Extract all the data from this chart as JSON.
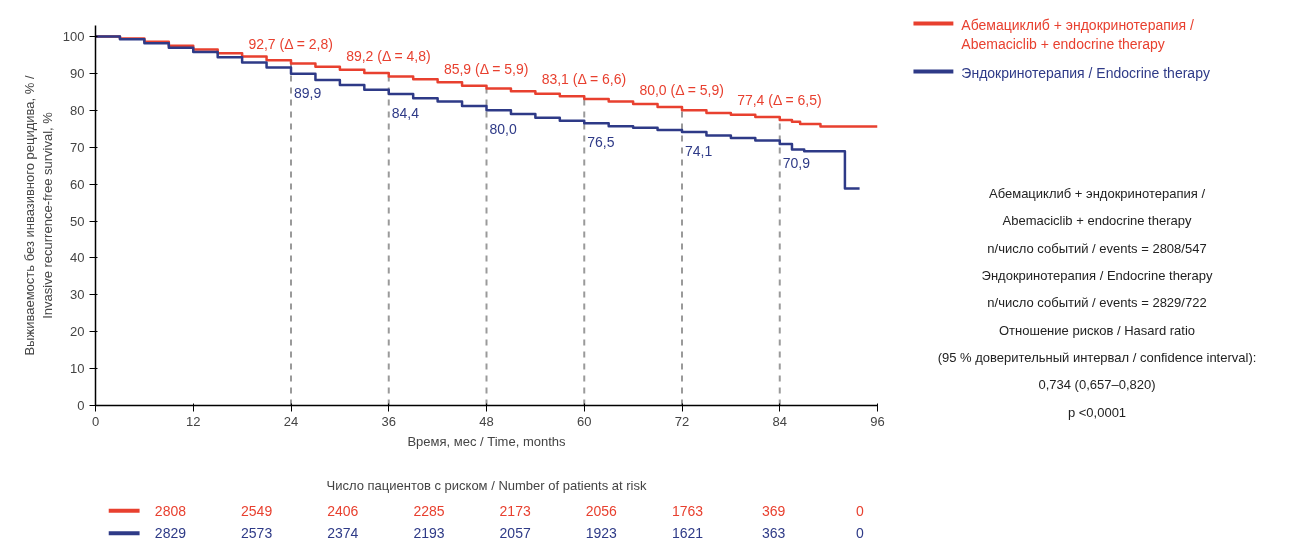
{
  "chart_data": [
    {
      "type": "step",
      "xlabel": "Время, мес / Time, months",
      "ylabel": "Выживаемость без инвазивного рецидива, % / Invasive recurrence-free survival, %",
      "xlim": [
        0,
        96
      ],
      "ylim": [
        0,
        103
      ],
      "xticks": [
        0,
        12,
        24,
        36,
        48,
        60,
        72,
        84,
        96
      ],
      "yticks": [
        0,
        10,
        20,
        30,
        40,
        50,
        60,
        70,
        80,
        90,
        100
      ],
      "grid": false,
      "legend": "top right",
      "marker": "none",
      "line_style": "solid",
      "series": [
        {
          "name": "Абемациклиб + эндокринотерапия / Abemaciclib + endocrine therapy",
          "color": "#e8402f",
          "x": [
            0,
            3,
            6,
            9,
            12,
            15,
            18,
            21,
            24,
            27,
            30,
            33,
            36,
            39,
            42,
            45,
            48,
            51,
            54,
            57,
            60,
            63,
            66,
            69,
            72,
            75,
            78,
            81,
            84,
            85.5,
            86.5,
            88,
            89,
            92,
            96
          ],
          "values": [
            100,
            99.5,
            98.6,
            97.5,
            96.5,
            95.5,
            94.6,
            93.6,
            92.7,
            91.8,
            91.0,
            90.1,
            89.2,
            88.4,
            87.6,
            86.7,
            85.9,
            85.2,
            84.5,
            83.8,
            83.1,
            82.4,
            81.7,
            80.9,
            80.0,
            79.3,
            78.8,
            78.2,
            77.4,
            76.9,
            76.3,
            76.3,
            75.6,
            75.6,
            75.6
          ]
        },
        {
          "name": "Эндокринотерапия / Endocrine therapy",
          "color": "#2e3a87",
          "x": [
            0,
            3,
            6,
            9,
            12,
            15,
            18,
            21,
            24,
            27,
            30,
            33,
            36,
            39,
            42,
            45,
            48,
            51,
            54,
            57,
            60,
            63,
            66,
            69,
            72,
            75,
            78,
            81,
            84,
            85.5,
            87,
            90,
            92,
            92,
            93.8
          ],
          "values": [
            100,
            99.3,
            98.2,
            97.0,
            95.8,
            94.4,
            93.0,
            91.6,
            89.9,
            88.2,
            86.9,
            85.6,
            84.4,
            83.3,
            82.4,
            81.2,
            80.0,
            79.0,
            78.0,
            77.2,
            76.5,
            75.7,
            75.3,
            74.7,
            74.1,
            73.2,
            72.5,
            71.8,
            70.9,
            69.4,
            68.9,
            68.9,
            68.9,
            58.8,
            58.8
          ]
        }
      ],
      "ref_lines": [
        {
          "axis": "x",
          "value": 24,
          "line_style": "dashed",
          "color": "#9a9a9a"
        },
        {
          "axis": "x",
          "value": 36,
          "line_style": "dashed",
          "color": "#9a9a9a"
        },
        {
          "axis": "x",
          "value": 48,
          "line_style": "dashed",
          "color": "#9a9a9a"
        },
        {
          "axis": "x",
          "value": 60,
          "line_style": "dashed",
          "color": "#9a9a9a"
        },
        {
          "axis": "x",
          "value": 72,
          "line_style": "dashed",
          "color": "#9a9a9a"
        },
        {
          "axis": "x",
          "value": 84,
          "line_style": "dashed",
          "color": "#9a9a9a"
        }
      ],
      "annotations": [
        {
          "text": "92,7 (Δ = 2,8)",
          "x": 24,
          "y": 92.7
        },
        {
          "text": "89,2 (Δ = 4,8)",
          "x": 36,
          "y": 89.2
        },
        {
          "text": "85,9 (Δ = 5,9)",
          "x": 48,
          "y": 85.9
        },
        {
          "text": "83,1 (Δ = 6,6)",
          "x": 60,
          "y": 83.1
        },
        {
          "text": "80,0 (Δ = 5,9)",
          "x": 72,
          "y": 80.0
        },
        {
          "text": "77,4 (Δ = 6,5)",
          "x": 84,
          "y": 77.4
        },
        {
          "text": "89,9",
          "x": 24,
          "y": 89.9
        },
        {
          "text": "84,4",
          "x": 36,
          "y": 84.4
        },
        {
          "text": "80,0",
          "x": 48,
          "y": 80.0
        },
        {
          "text": "76,5",
          "x": 60,
          "y": 76.5
        },
        {
          "text": "74,1",
          "x": 72,
          "y": 74.1
        },
        {
          "text": "70,9",
          "x": 84,
          "y": 70.9
        },
        "Абемациклиб + эндокринотерапия /",
        "Abemaciclib + endocrine therapy",
        "n/число событий / events = 2808/547",
        "Эндокринотерапия / Endocrine therapy",
        "n/число событий / events = 2829/722",
        "Отношение рисков / Hasard ratio",
        "(95 % доверительный интервал / confidence interval):",
        "0,734 (0,657–0,820)",
        "p <0,0001",
        "Число пациентов с риском / Number of patients at risk",
        "2808",
        "2549",
        "2406",
        "2285",
        "2173",
        "2056",
        "1763",
        "369",
        "0",
        "2829",
        "2573",
        "2374",
        "2193",
        "2057",
        "1923",
        "1621",
        "363",
        "0"
      ]
    }
  ]
}
